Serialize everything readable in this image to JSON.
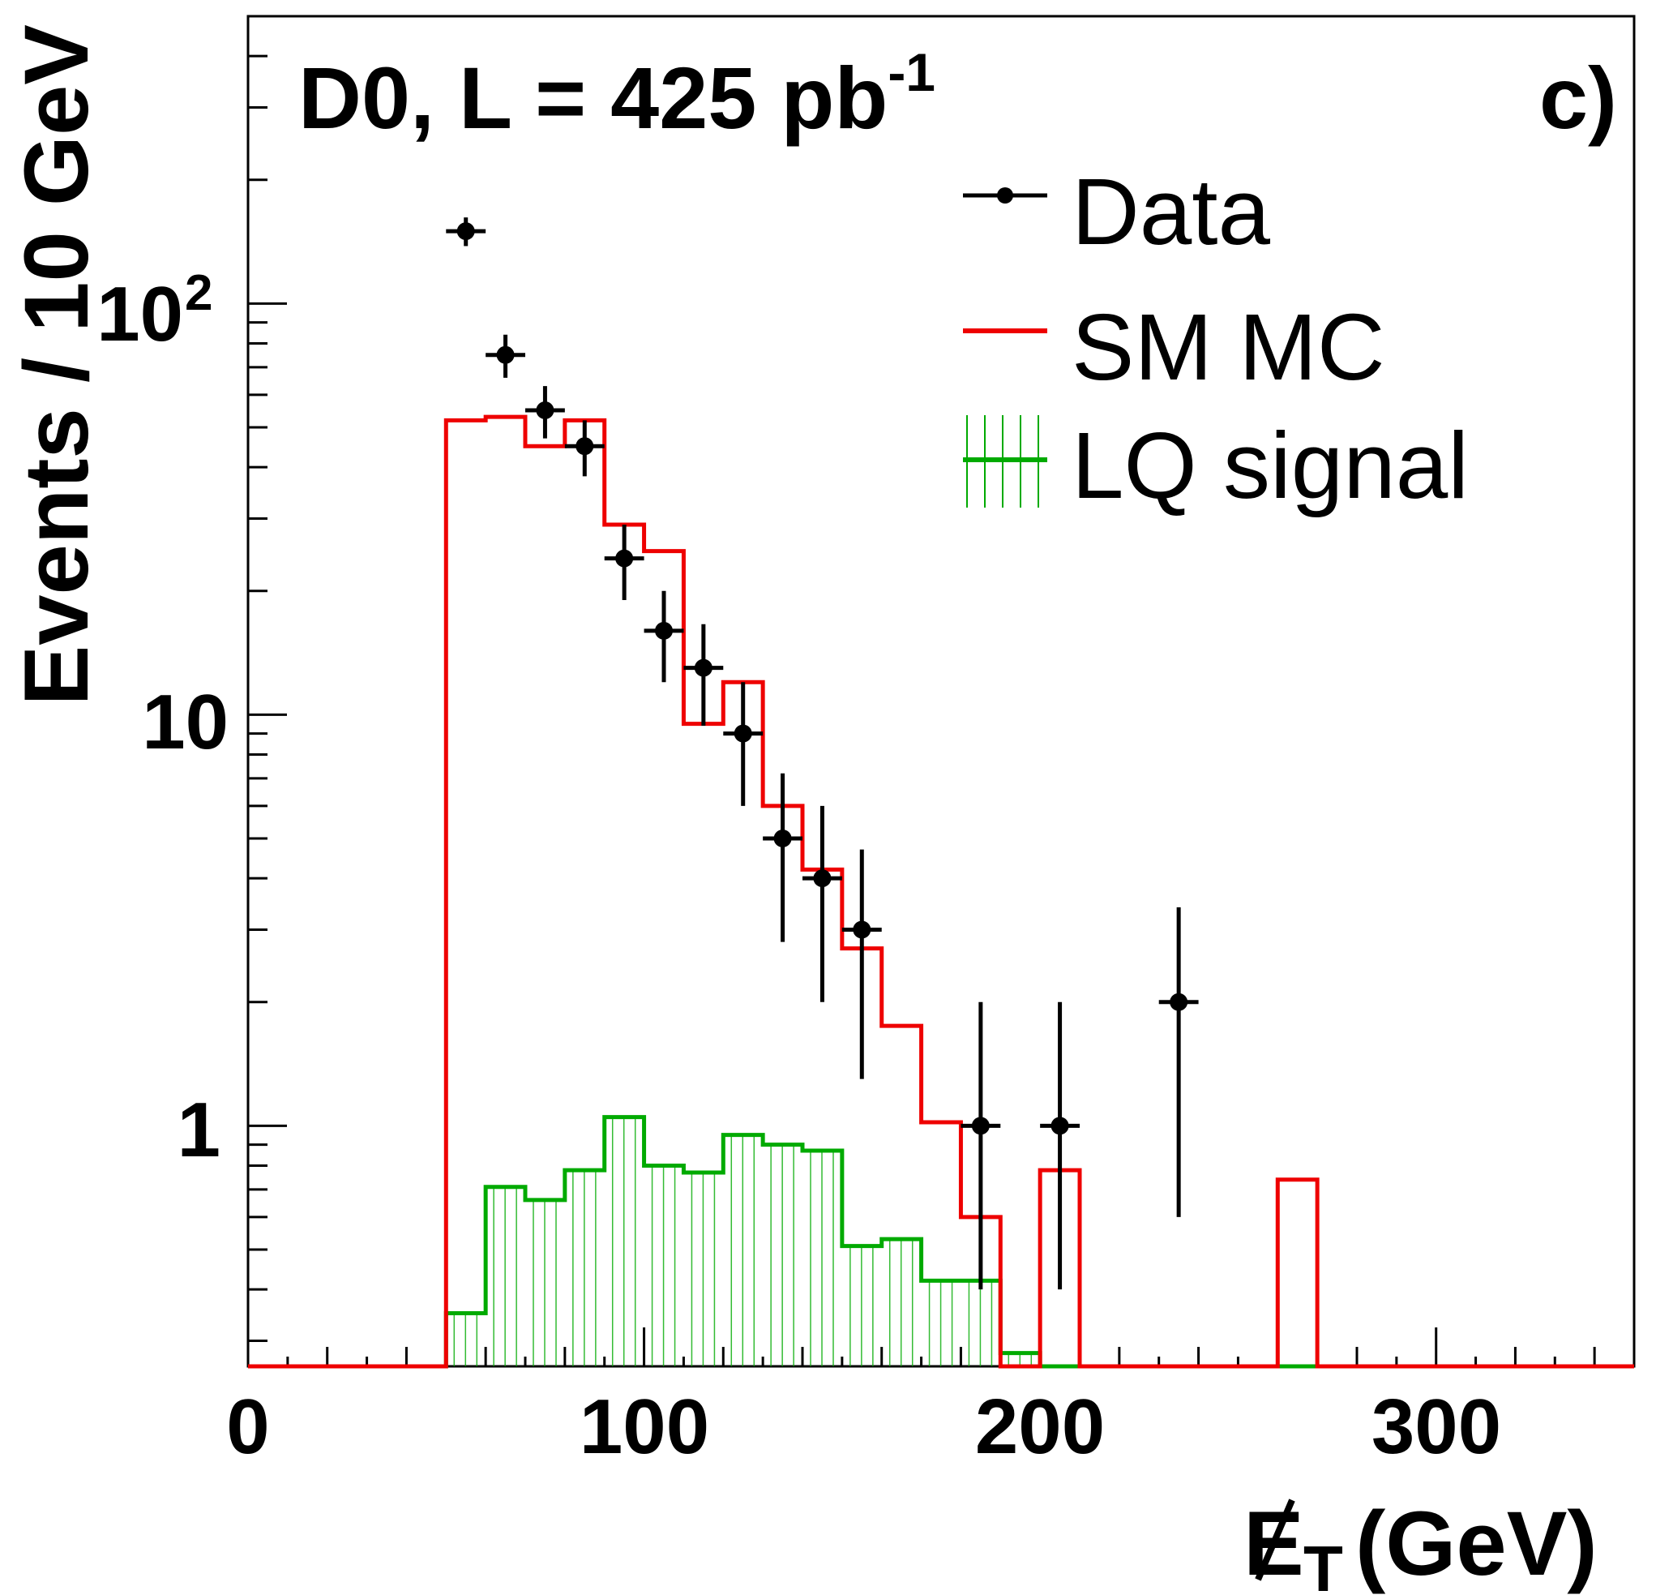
{
  "chart_data": {
    "type": "bar",
    "annotation": "D0, L = 425 pb",
    "annotation_sup": "-1",
    "panel_label": "c)",
    "ylabel": "Events / 10 GeV",
    "xlabel_symbol": "E",
    "xlabel_sub": "T",
    "xlabel_unit": "(GeV)",
    "xlim": [
      0,
      350
    ],
    "ylim": [
      0.26,
      500
    ],
    "yscale": "log",
    "x_ticks": [
      "0",
      "100",
      "200",
      "300"
    ],
    "y_ticks": [
      {
        "value": 1,
        "label": "1",
        "sup": ""
      },
      {
        "value": 10,
        "label": "10",
        "sup": ""
      },
      {
        "value": 100,
        "label": "10",
        "sup": "2"
      }
    ],
    "legend": {
      "position": "top-right",
      "entries": [
        {
          "key": "data",
          "label": "Data"
        },
        {
          "key": "sm_mc",
          "label": "SM MC"
        },
        {
          "key": "lq",
          "label": "LQ signal"
        }
      ]
    },
    "colors": {
      "data": "#000000",
      "sm_mc": "#ee0000",
      "lq": "#00aa00"
    },
    "bin_width": 10,
    "sm_mc": {
      "edges": [
        50,
        60,
        70,
        80,
        90,
        100,
        110,
        120,
        130,
        140,
        150,
        160,
        170,
        180,
        190,
        200,
        210,
        220,
        230,
        240,
        250,
        260,
        270
      ],
      "values": [
        52,
        53,
        45,
        52,
        29,
        25,
        9.5,
        12,
        6,
        4.2,
        2.7,
        1.75,
        1.02,
        0.6,
        0.26,
        0.78,
        0.26,
        0.26,
        0.26,
        0.26,
        0.26,
        0.74
      ]
    },
    "lq_signal": {
      "edges": [
        50,
        60,
        70,
        80,
        90,
        100,
        110,
        120,
        130,
        140,
        150,
        160,
        170,
        180,
        190,
        200,
        210
      ],
      "values": [
        0.35,
        0.71,
        0.66,
        0.78,
        1.05,
        0.8,
        0.77,
        0.95,
        0.9,
        0.87,
        0.51,
        0.53,
        0.42,
        0.42,
        0.28,
        0.26
      ]
    },
    "data": {
      "x": [
        55,
        65,
        75,
        85,
        95,
        105,
        115,
        125,
        135,
        145,
        155,
        185,
        205,
        235
      ],
      "y": [
        150,
        75,
        55,
        45,
        24,
        16,
        13,
        9,
        5,
        4,
        3,
        1,
        1,
        2
      ],
      "err_low": [
        12,
        9,
        8,
        7,
        5,
        4,
        3.6,
        3,
        2.2,
        2,
        1.7,
        0.6,
        0.6,
        1.4
      ],
      "err_high": [
        12,
        9,
        8,
        7,
        5,
        4,
        3.6,
        3,
        2.2,
        2,
        1.7,
        1,
        1,
        1.4
      ]
    }
  }
}
